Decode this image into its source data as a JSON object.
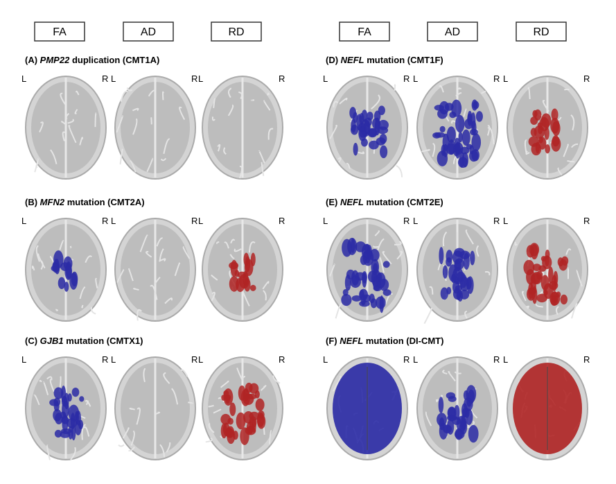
{
  "headers": {
    "left": [
      "FA",
      "AD",
      "RD"
    ],
    "right": [
      "FA",
      "AD",
      "RD"
    ]
  },
  "side_labels": {
    "left": "L",
    "right": "R"
  },
  "panels": [
    {
      "letter": "(A)",
      "gene": "PMP22",
      "rest": "duplication (CMT1A)"
    },
    {
      "letter": "(B)",
      "gene": "MFN2",
      "rest": "mutation (CMT2A)"
    },
    {
      "letter": "(C)",
      "gene": "GJB1",
      "rest": "mutation (CMTX1)"
    },
    {
      "letter": "(D)",
      "gene": "NEFL",
      "rest": "mutation (CMT1F)"
    },
    {
      "letter": "(E)",
      "gene": "NEFL",
      "rest": "mutation (CMT2E)"
    },
    {
      "letter": "(F)",
      "gene": "NEFL",
      "rest": "mutation (DI-CMT)"
    }
  ]
}
